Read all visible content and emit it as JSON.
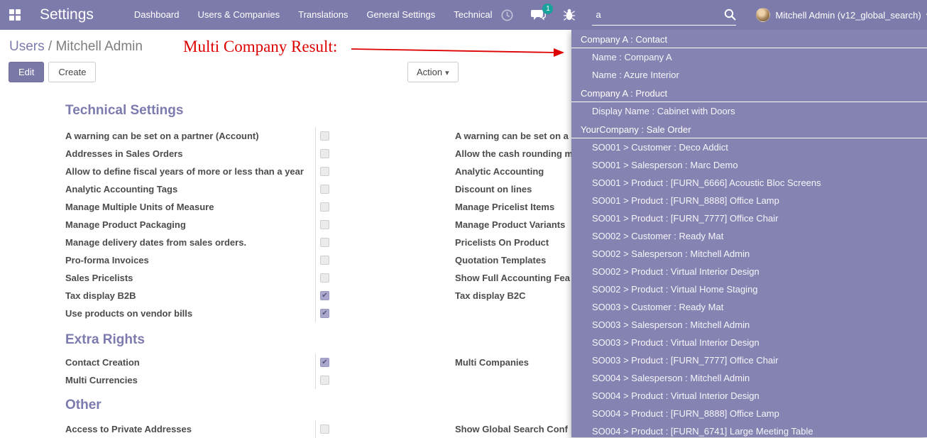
{
  "navbar": {
    "app_title": "Settings",
    "menu_items": [
      "Dashboard",
      "Users & Companies",
      "Translations",
      "General Settings",
      "Technical"
    ],
    "message_badge": "1",
    "search_value": "a",
    "user_name": "Mitchell Admin (v12_global_search)"
  },
  "control_panel": {
    "breadcrumb_link": "Users",
    "breadcrumb_sep": "/",
    "breadcrumb_current": "Mitchell Admin",
    "edit_label": "Edit",
    "create_label": "Create",
    "action_label": "Action"
  },
  "annotation": {
    "text": "Multi Company Result:"
  },
  "sections": [
    {
      "title": "Technical Settings",
      "left_rows": [
        {
          "label": "A warning can be set on a partner (Account)",
          "checked": false
        },
        {
          "label": "Addresses in Sales Orders",
          "checked": false
        },
        {
          "label": "Allow to define fiscal years of more or less than a year",
          "checked": false
        },
        {
          "label": "Analytic Accounting Tags",
          "checked": false
        },
        {
          "label": "Manage Multiple Units of Measure",
          "checked": false
        },
        {
          "label": "Manage Product Packaging",
          "checked": false
        },
        {
          "label": "Manage delivery dates from sales orders.",
          "checked": false
        },
        {
          "label": "Pro-forma Invoices",
          "checked": false
        },
        {
          "label": "Sales Pricelists",
          "checked": false
        },
        {
          "label": "Tax display B2B",
          "checked": true
        },
        {
          "label": "Use products on vendor bills",
          "checked": true
        }
      ],
      "right_rows": [
        "A warning can be set on a",
        "Allow the cash rounding m",
        "Analytic Accounting",
        "Discount on lines",
        "Manage Pricelist Items",
        "Manage Product Variants",
        "Pricelists On Product",
        "Quotation Templates",
        "Show Full Accounting Fea",
        "Tax display B2C"
      ]
    },
    {
      "title": "Extra Rights",
      "left_rows": [
        {
          "label": "Contact Creation",
          "checked": true
        },
        {
          "label": "Multi Currencies",
          "checked": false
        }
      ],
      "right_rows": [
        "Multi Companies"
      ]
    },
    {
      "title": "Other",
      "left_rows": [
        {
          "label": "Access to Private Addresses",
          "checked": false
        }
      ],
      "right_rows": [
        "Show Global Search Conf"
      ]
    }
  ],
  "search_dropdown": {
    "groups": [
      {
        "header": "Company A : Contact",
        "items": [
          "Name : Company A",
          "Name : Azure Interior"
        ]
      },
      {
        "header": "Company A : Product",
        "items": [
          "Display Name : Cabinet with Doors"
        ]
      },
      {
        "header": "YourCompany : Sale Order",
        "items": [
          "SO001 > Customer : Deco Addict",
          "SO001 > Salesperson : Marc Demo",
          "SO001 > Product : [FURN_6666] Acoustic Bloc Screens",
          "SO001 > Product : [FURN_8888] Office Lamp",
          "SO001 > Product : [FURN_7777] Office Chair",
          "SO002 > Customer : Ready Mat",
          "SO002 > Salesperson : Mitchell Admin",
          "SO002 > Product : Virtual Interior Design",
          "SO002 > Product : Virtual Home Staging",
          "SO003 > Customer : Ready Mat",
          "SO003 > Salesperson : Mitchell Admin",
          "SO003 > Product : Virtual Interior Design",
          "SO003 > Product : [FURN_7777] Office Chair",
          "SO004 > Salesperson : Mitchell Admin",
          "SO004 > Product : Virtual Interior Design",
          "SO004 > Product : [FURN_8888] Office Lamp",
          "SO004 > Product : [FURN_6741] Large Meeting Table"
        ]
      }
    ]
  },
  "icons": {
    "caret_down": "▾",
    "check": "✔"
  },
  "colors": {
    "navbar_bg": "#7d7bab",
    "dropdown_bg": "#8583b1",
    "accent_purple": "#7c7bad",
    "badge_teal": "#17a29b",
    "annotation_red": "#dd0000",
    "checkbox_checked": "#a9a7cc"
  }
}
